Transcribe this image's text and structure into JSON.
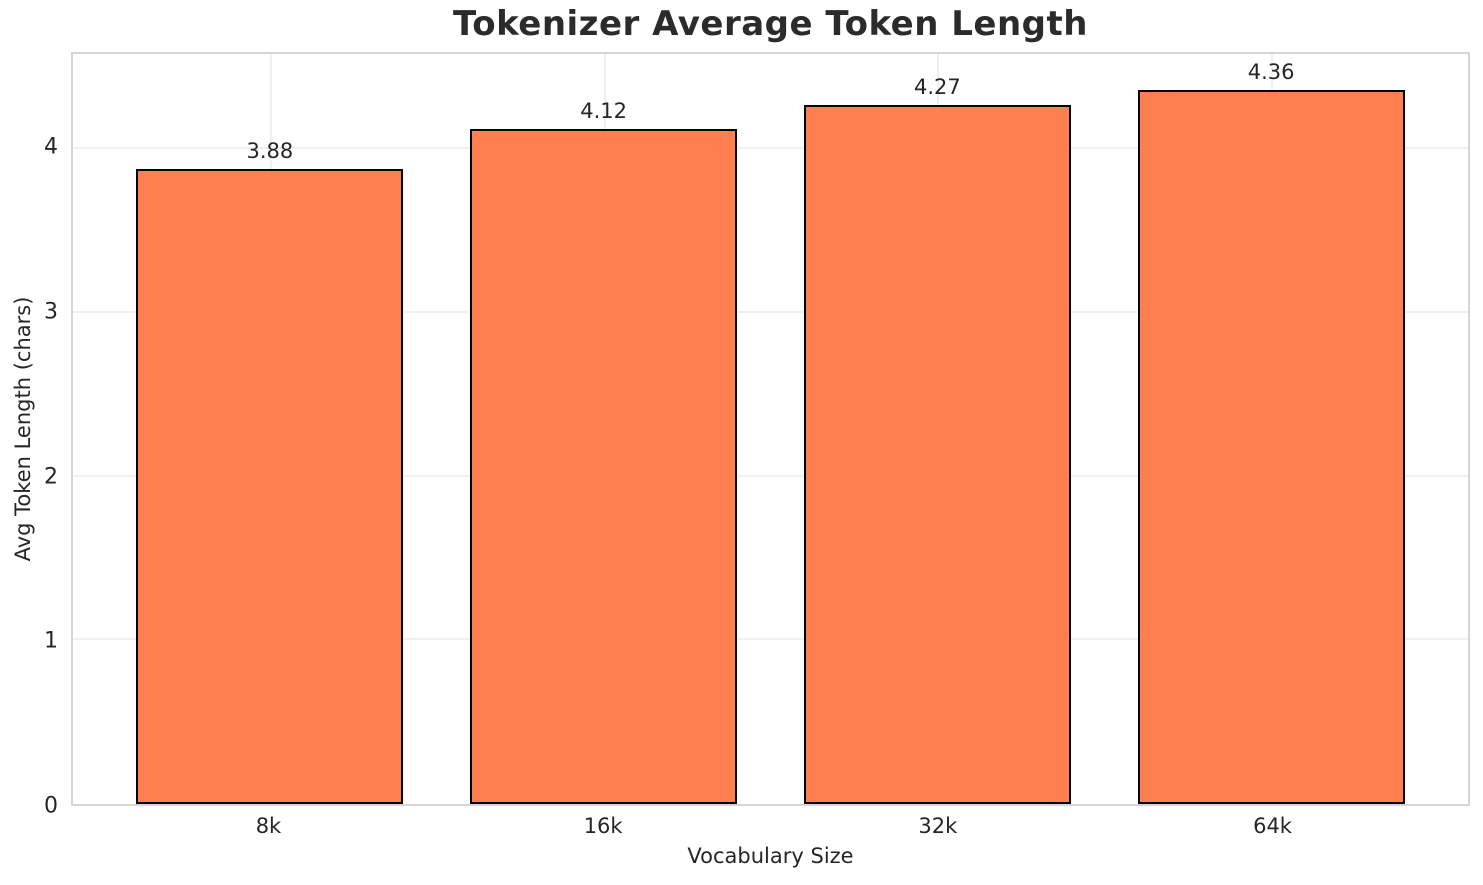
{
  "chart_data": {
    "type": "bar",
    "title": "Tokenizer Average Token Length",
    "xlabel": "Vocabulary Size",
    "ylabel": "Avg Token Length (chars)",
    "categories": [
      "8k",
      "16k",
      "32k",
      "64k"
    ],
    "values": [
      3.88,
      4.12,
      4.27,
      4.36
    ],
    "value_labels": [
      "3.88",
      "4.12",
      "4.27",
      "4.36"
    ],
    "yticks": [
      0,
      1,
      2,
      3,
      4
    ],
    "ylim": [
      0,
      4.58
    ],
    "xlim": [
      -0.59,
      3.59
    ],
    "bar_width": 0.8,
    "grid": "both",
    "legend_position": "none",
    "colors": {
      "bar_fill": "#FF7F50",
      "bar_edge": "#000000",
      "grid": "#F0F0F0",
      "spine": "#D5D5D5",
      "text": "#262626",
      "title_text": "#2B2B2B",
      "background": "#FFFFFF"
    }
  }
}
